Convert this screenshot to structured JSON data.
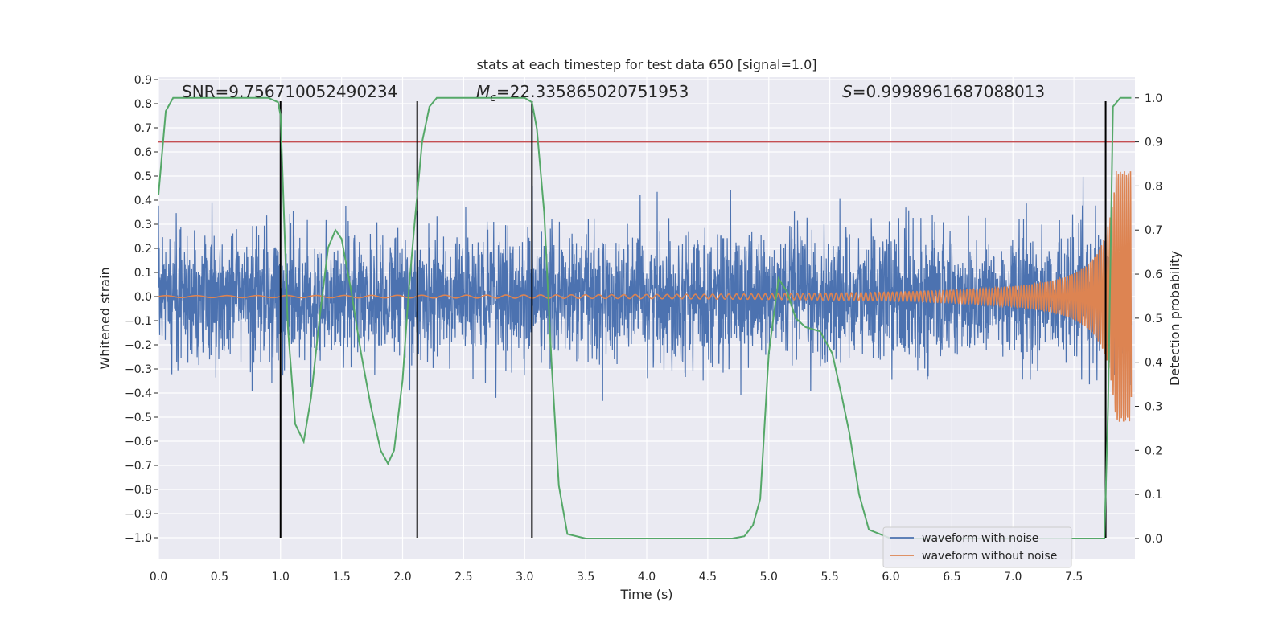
{
  "chart_data": {
    "type": "line",
    "title": "stats at each timestep for test data 650 [signal=1.0]",
    "xlabel": "Time (s)",
    "ylabel": "Whitened strain",
    "y2label": "Detection probability",
    "xlim": [
      0.0,
      8.0
    ],
    "ylim": [
      -1.09,
      0.91
    ],
    "y2lim": [
      -0.0475,
      1.047
    ],
    "xticks": [
      0.0,
      0.5,
      1.0,
      1.5,
      2.0,
      2.5,
      3.0,
      3.5,
      4.0,
      4.5,
      5.0,
      5.5,
      6.0,
      6.5,
      7.0,
      7.5
    ],
    "yticks": [
      0.9,
      0.8,
      0.7,
      0.6,
      0.5,
      0.4,
      0.3,
      0.2,
      0.1,
      0.0,
      -0.1,
      -0.2,
      -0.3,
      -0.4,
      -0.5,
      -0.6,
      -0.7,
      -0.8,
      -0.9,
      -1.0
    ],
    "y2ticks": [
      1.0,
      0.9,
      0.8,
      0.7,
      0.6,
      0.5,
      0.4,
      0.3,
      0.2,
      0.1,
      0.0
    ],
    "grid": true,
    "legend_position": "lower-right",
    "annotations": {
      "snr": "SNR=9.756710052490234",
      "mc_symbol": "M",
      "mc_sub": "c",
      "mc_value": "=22.335865020751953",
      "s_symbol": "S",
      "s_value": "=0.9998961687088013"
    },
    "threshold_line": {
      "axis": "right",
      "value": 0.9,
      "color": "#c44e52"
    },
    "vertical_lines": {
      "x": [
        1.0,
        2.12,
        3.06,
        7.76
      ],
      "y_range": [
        -1.0,
        0.81
      ],
      "color": "#000000"
    },
    "series": [
      {
        "name": "waveform with noise",
        "axis": "left",
        "color": "#4c72b0",
        "description_stats": {
          "mean": 0.0,
          "approx_std": 0.13,
          "approx_peak": 0.55
        }
      },
      {
        "name": "waveform without noise",
        "axis": "left",
        "color": "#dd8452",
        "chirp": {
          "amp_start": 0.004,
          "amp_end": 0.52,
          "freq_start_hz": 4,
          "freq_end_hz": 40,
          "t_merge": 7.94
        }
      },
      {
        "axis": "right",
        "color": "#55a868",
        "x": [
          0.0,
          0.06,
          0.12,
          0.2,
          0.3,
          0.5,
          0.7,
          0.9,
          0.98,
          1.0,
          1.06,
          1.12,
          1.19,
          1.25,
          1.32,
          1.39,
          1.45,
          1.5,
          1.58,
          1.66,
          1.74,
          1.82,
          1.88,
          1.93,
          2.0,
          2.05,
          2.1,
          2.16,
          2.22,
          2.28,
          2.35,
          2.5,
          2.7,
          2.9,
          3.0,
          3.06,
          3.1,
          3.16,
          3.22,
          3.28,
          3.35,
          3.5,
          4.0,
          4.5,
          4.7,
          4.8,
          4.87,
          4.93,
          5.0,
          5.08,
          5.15,
          5.22,
          5.3,
          5.42,
          5.52,
          5.6,
          5.66,
          5.74,
          5.82,
          6.0,
          6.5,
          7.0,
          7.5,
          7.75,
          7.78,
          7.82,
          7.88,
          7.94,
          7.97
        ],
        "values": [
          0.78,
          0.97,
          1.0,
          1.0,
          1.0,
          1.0,
          1.0,
          1.0,
          0.99,
          0.96,
          0.48,
          0.26,
          0.22,
          0.32,
          0.5,
          0.66,
          0.7,
          0.68,
          0.56,
          0.42,
          0.3,
          0.2,
          0.17,
          0.2,
          0.36,
          0.56,
          0.72,
          0.9,
          0.98,
          1.0,
          1.0,
          1.0,
          1.0,
          1.0,
          1.0,
          0.99,
          0.93,
          0.74,
          0.4,
          0.12,
          0.01,
          0.0,
          0.0,
          0.0,
          0.0,
          0.005,
          0.03,
          0.09,
          0.42,
          0.59,
          0.56,
          0.5,
          0.48,
          0.47,
          0.42,
          0.32,
          0.24,
          0.1,
          0.02,
          0.0,
          0.0,
          0.0,
          0.0,
          0.0,
          0.3,
          0.98,
          1.0,
          1.0,
          1.0
        ]
      }
    ]
  }
}
